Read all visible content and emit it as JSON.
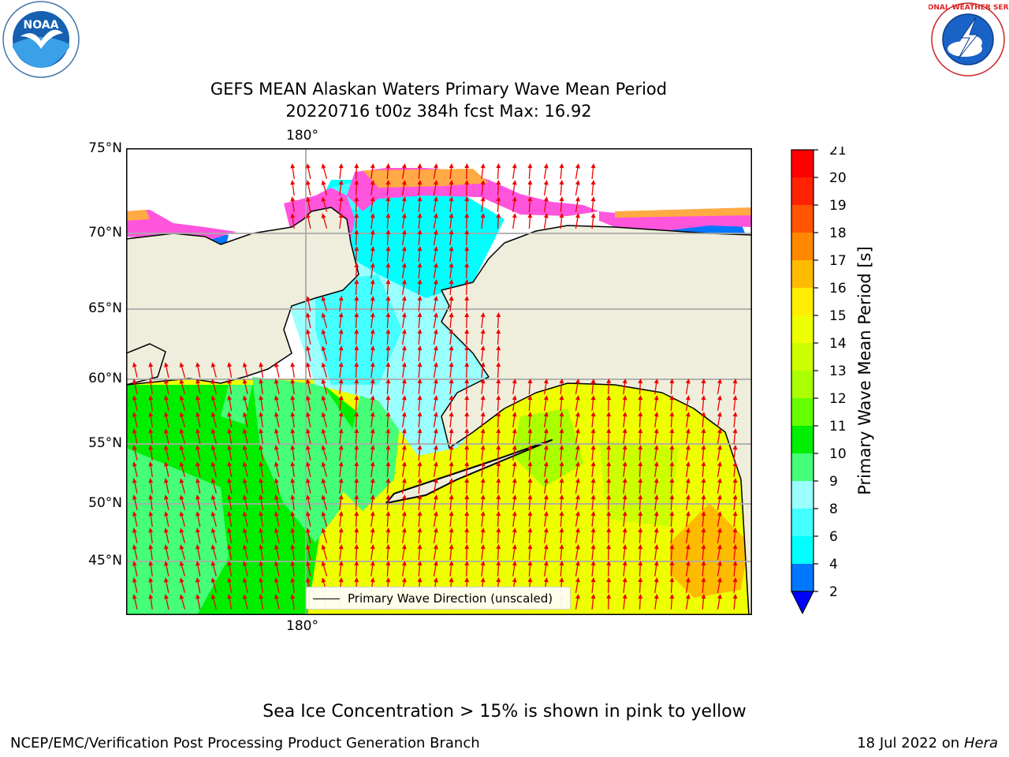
{
  "title": {
    "line1": "GEFS MEAN Alaskan Waters Primary Wave Mean Period",
    "line2": "20220716 t00z 384h fcst   Max: 16.92"
  },
  "logos": {
    "noaa_text": "NOAA",
    "nws_ring_text": "NATIONAL WEATHER SERVICE"
  },
  "axes": {
    "lat_labels": [
      "75°N",
      "70°N",
      "65°N",
      "60°N",
      "55°N",
      "50°N",
      "45°N"
    ],
    "lon_label_top": "180°",
    "lon_label_bottom": "180°"
  },
  "legend": {
    "label": "Primary Wave Direction (unscaled)"
  },
  "colorbar": {
    "label": "Primary Wave Mean Period [s]",
    "ticks": [
      "21",
      "20",
      "19",
      "18",
      "17",
      "16",
      "15",
      "14",
      "13",
      "12",
      "11",
      "10",
      "9",
      "8",
      "6",
      "4",
      "2"
    ],
    "colors_top_to_bottom": [
      "#ff0000",
      "#ff2200",
      "#ff5500",
      "#ff8800",
      "#ffbb00",
      "#ffee00",
      "#eeff00",
      "#ccff00",
      "#aaff00",
      "#66ff00",
      "#00ee00",
      "#44ff77",
      "#99ffff",
      "#44ffff",
      "#00ffff",
      "#0077ff"
    ],
    "extend_color": "#0000ff"
  },
  "map_colors": {
    "land": "#efeedc",
    "ice_pink": "#ff55dd",
    "ice_orange": "#ffaa44",
    "arrow": "#ee0000"
  },
  "caption": "Sea Ice Concentration > 15% is shown in pink to yellow",
  "footer": {
    "left": "NCEP/EMC/Verification Post Processing Product Generation Branch",
    "date": "18 Jul 2022 on",
    "host": "Hera"
  }
}
